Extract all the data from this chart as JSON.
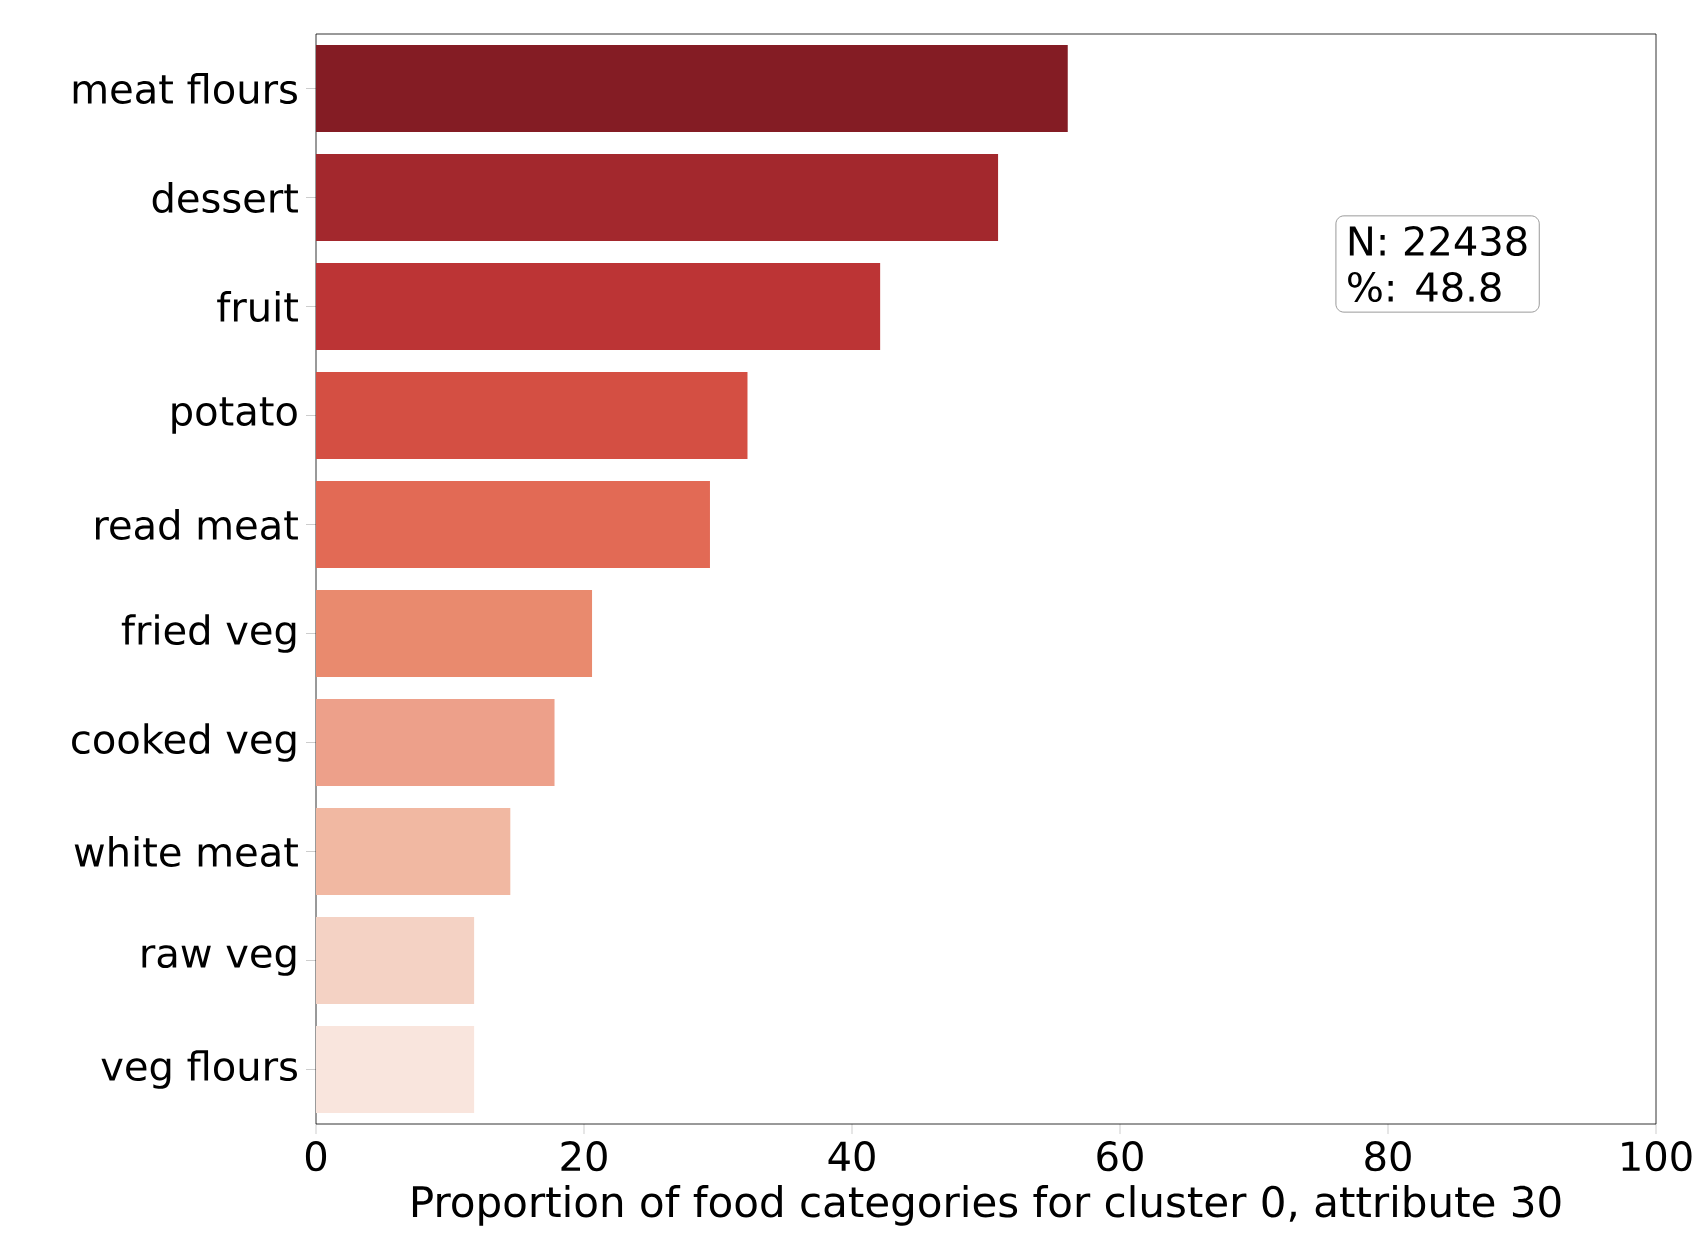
{
  "chart_data": {
    "type": "bar",
    "orientation": "horizontal",
    "xlabel": "Proportion of food categories for cluster 0, attribute 30",
    "categories": [
      "meat flours",
      "dessert",
      "fruit",
      "potato",
      "read meat",
      "fried veg",
      "cooked veg",
      "white meat",
      "raw veg",
      "veg flours"
    ],
    "values": [
      56.1,
      50.9,
      42.1,
      32.2,
      29.4,
      20.6,
      17.8,
      14.5,
      11.8,
      11.8
    ],
    "colors": [
      "#841c24",
      "#a3282d",
      "#bc3435",
      "#d44f43",
      "#e26a55",
      "#e98a6e",
      "#eda08a",
      "#f1b8a2",
      "#f4d2c4",
      "#f9e5dd"
    ],
    "xlim": [
      0,
      100
    ],
    "xticks": [
      0,
      20,
      40,
      60,
      80,
      100
    ],
    "annotations": [
      "N: 22438",
      "%: 48.8"
    ],
    "grid": false
  }
}
